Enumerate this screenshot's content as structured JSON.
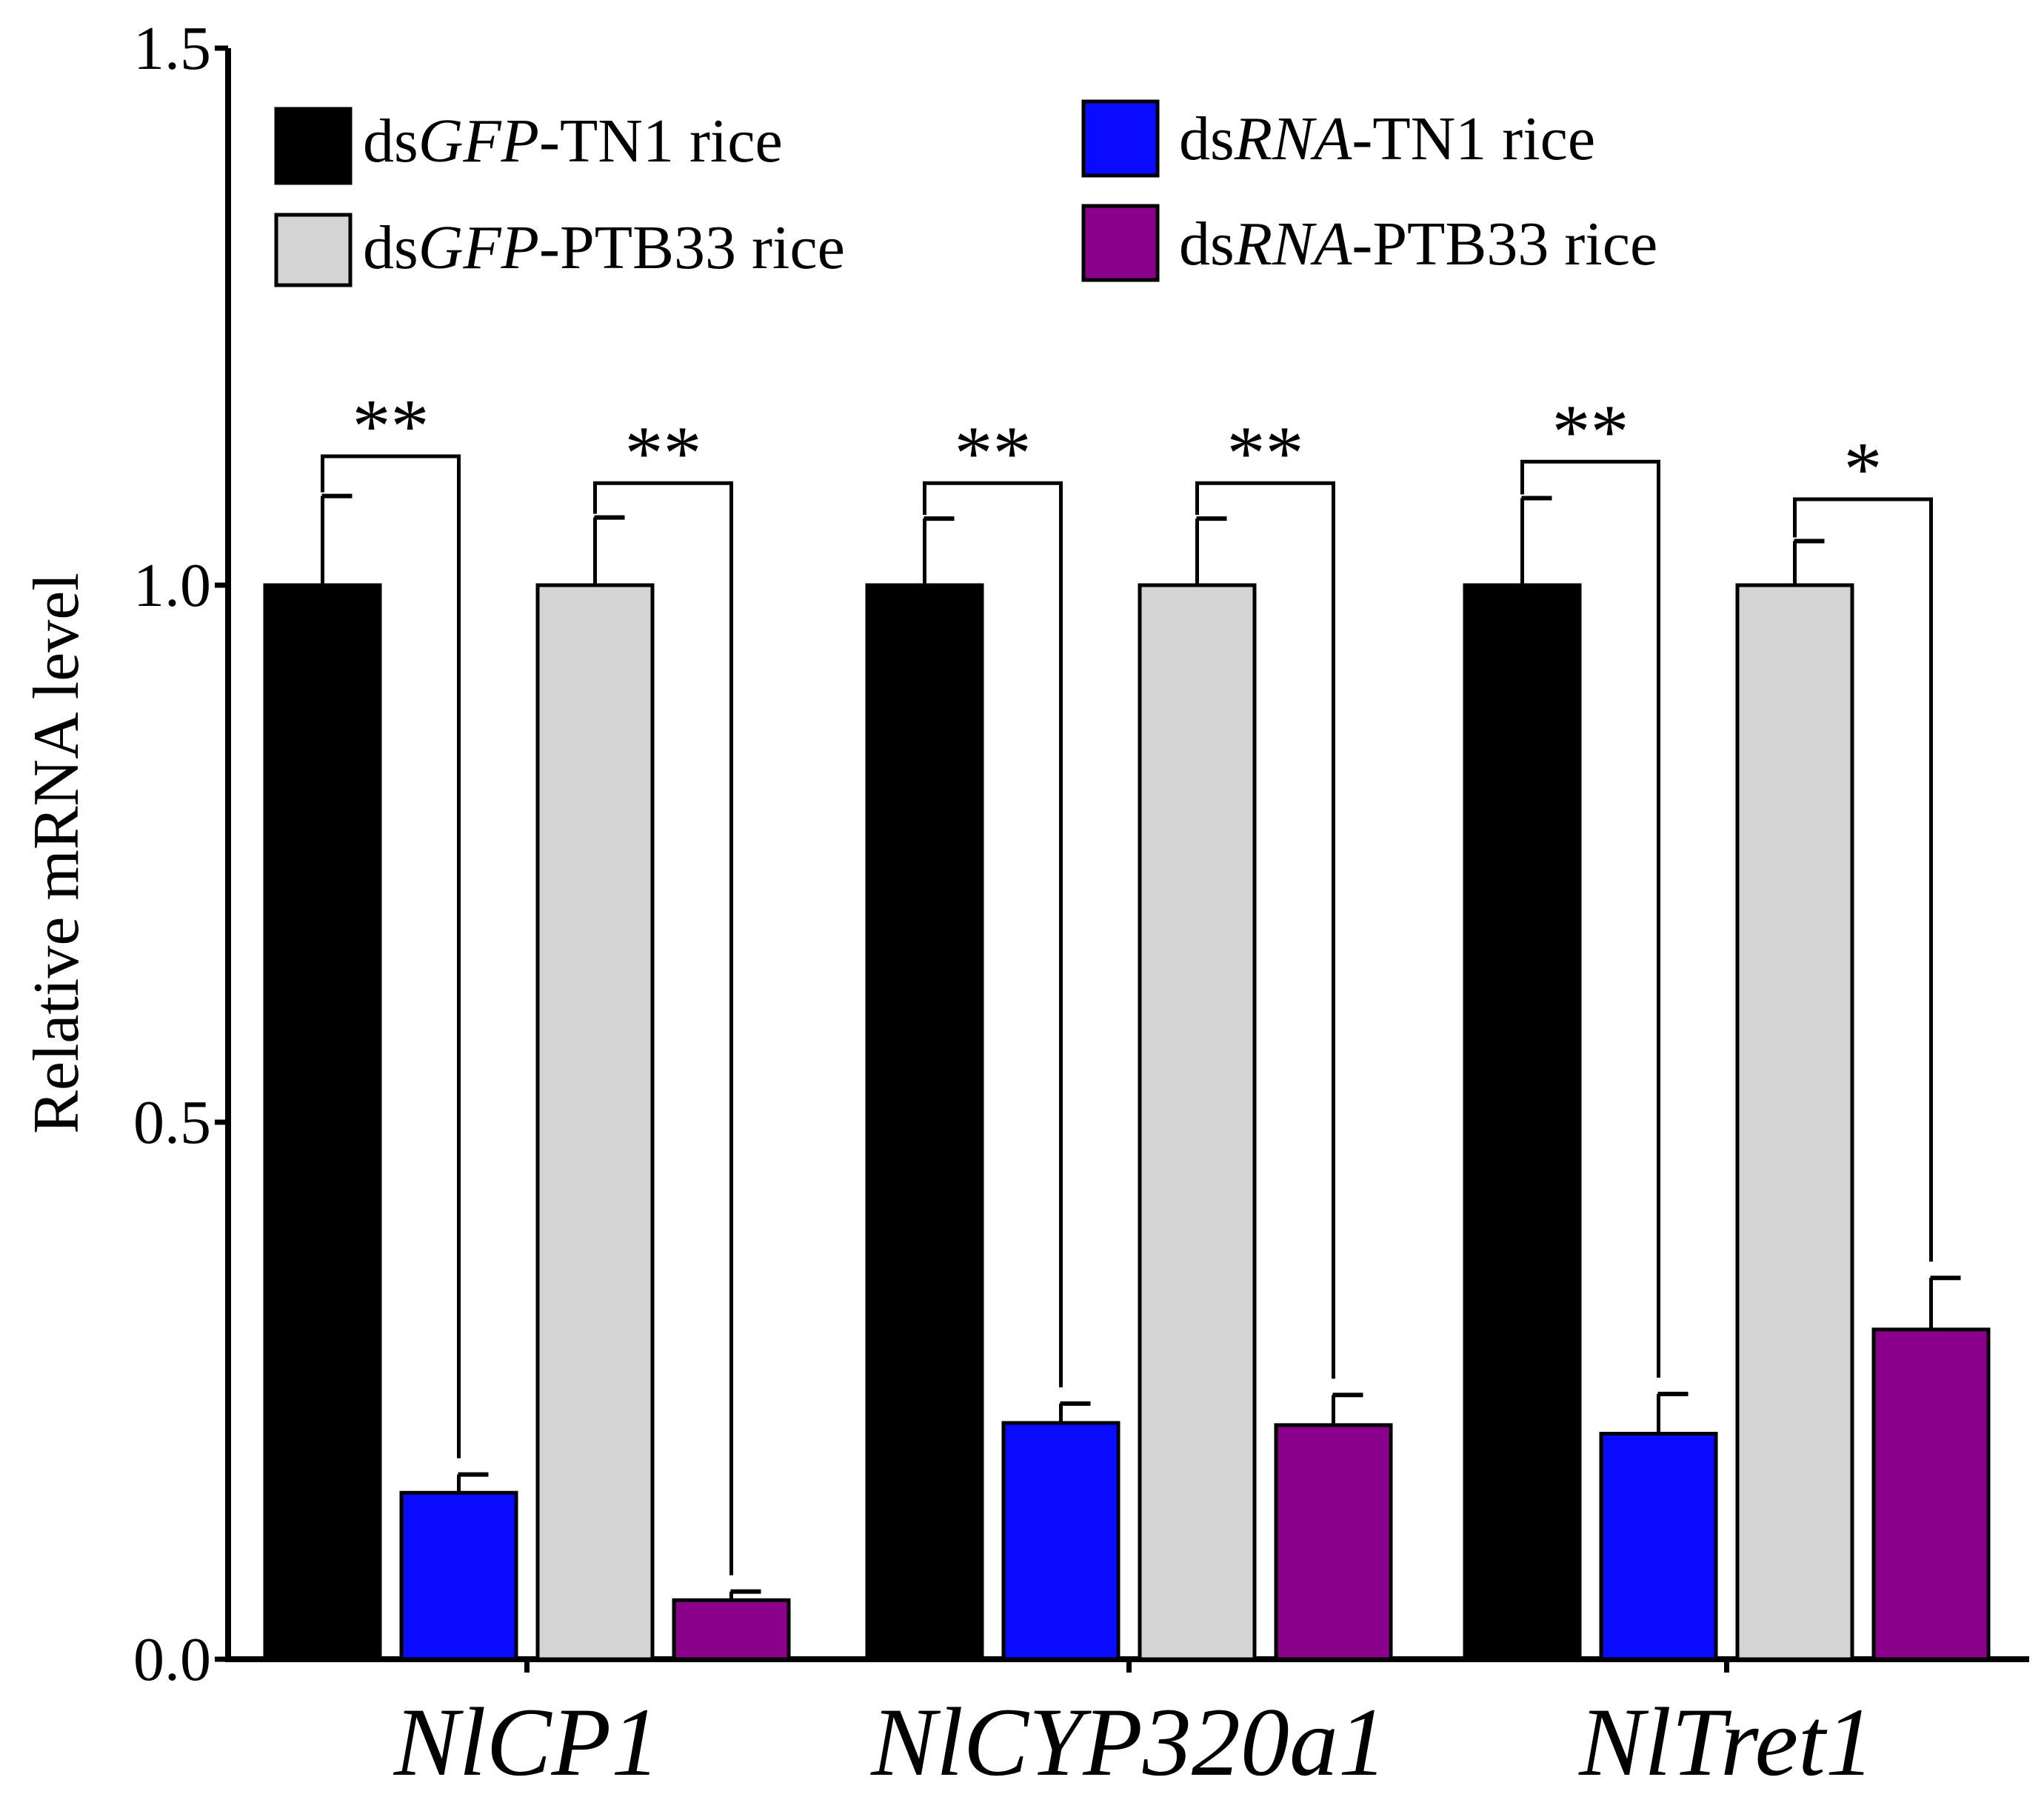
{
  "chart_data": {
    "type": "bar",
    "title": "",
    "xlabel": "",
    "ylabel": "Relative mRNA level",
    "ylim": [
      0,
      1.5
    ],
    "yticks": [
      "0.0",
      "0.5",
      "1.0",
      "1.5"
    ],
    "ytick_values": [
      0,
      0.5,
      1.0,
      1.5
    ],
    "categories": [
      "NlCP1",
      "NlCYP320a1",
      "NlTret1"
    ],
    "series": [
      {
        "key": "gfp_tn1",
        "name": "dsGFP-TN1 rice",
        "prefix": "ds",
        "italic": "GFP",
        "suffix": "-TN1 rice",
        "color": "#000000",
        "values": [
          1.0,
          1.0,
          1.0
        ],
        "errors": [
          0.083,
          0.062,
          0.081
        ]
      },
      {
        "key": "rna_tn1",
        "name": "dsRNA-TN1 rice",
        "prefix": "ds",
        "italic": "RNA",
        "suffix": "-TN1 rice",
        "color": "#0a0aff",
        "values": [
          0.155,
          0.22,
          0.21
        ],
        "errors": [
          0.017,
          0.018,
          0.037
        ]
      },
      {
        "key": "gfp_ptb33",
        "name": "dsGFP-PTB33 rice",
        "prefix": "ds",
        "italic": "GFP",
        "suffix": "-PTB33 rice",
        "color": "#d4d4d4",
        "values": [
          1.0,
          1.0,
          1.0
        ],
        "errors": [
          0.063,
          0.062,
          0.041
        ]
      },
      {
        "key": "rna_ptb33",
        "name": "dsRNA-PTB33 rice",
        "prefix": "ds",
        "italic": "RNA",
        "suffix": "-PTB33 rice",
        "color": "#8a008a",
        "values": [
          0.055,
          0.218,
          0.307
        ],
        "errors": [
          0.008,
          0.028,
          0.048
        ]
      }
    ],
    "significance": [
      {
        "group": 0,
        "pair": "tn1",
        "label": "**",
        "level": 1.12
      },
      {
        "group": 0,
        "pair": "ptb33",
        "label": "**",
        "level": 1.095
      },
      {
        "group": 1,
        "pair": "tn1",
        "label": "**",
        "level": 1.095
      },
      {
        "group": 1,
        "pair": "ptb33",
        "label": "**",
        "level": 1.095
      },
      {
        "group": 2,
        "pair": "tn1",
        "label": "**",
        "level": 1.115
      },
      {
        "group": 2,
        "pair": "ptb33",
        "label": "*",
        "level": 1.08
      }
    ],
    "legend_position": "top",
    "grid": false
  }
}
